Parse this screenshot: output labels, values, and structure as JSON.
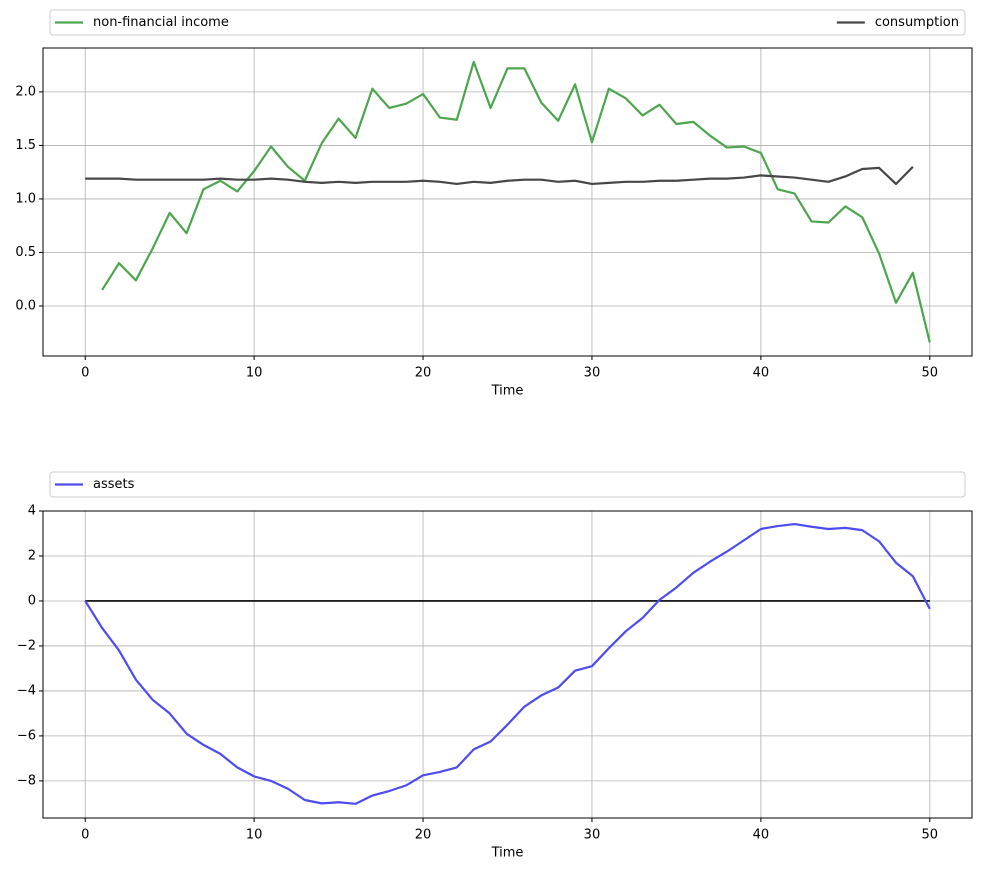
{
  "chart_data": [
    {
      "type": "line",
      "xlabel": "Time",
      "grid": true,
      "legend": "top-expand",
      "xlim": [
        -2.5,
        52.5
      ],
      "ylim": [
        -0.467,
        2.41
      ],
      "xticks": [
        0,
        10,
        20,
        30,
        40,
        50
      ],
      "yticks": [
        {
          "value": 0,
          "label": "0.0"
        },
        0.5,
        {
          "value": 1,
          "label": "1.0"
        },
        1.5,
        {
          "value": 2,
          "label": "2.0"
        }
      ],
      "series": [
        {
          "name": "non-financial income",
          "color": "#4ca64c",
          "x": [
            1,
            2,
            3,
            4,
            5,
            6,
            7,
            8,
            9,
            10,
            11,
            12,
            13,
            14,
            15,
            16,
            17,
            18,
            19,
            20,
            21,
            22,
            23,
            24,
            25,
            26,
            27,
            28,
            29,
            30,
            31,
            32,
            33,
            34,
            35,
            36,
            37,
            38,
            39,
            40,
            41,
            42,
            43,
            44,
            45,
            46,
            47,
            48,
            49,
            50
          ],
          "values": [
            0.15,
            0.4,
            0.24,
            0.54,
            0.87,
            0.68,
            1.09,
            1.17,
            1.07,
            1.26,
            1.49,
            1.3,
            1.17,
            1.52,
            1.75,
            1.57,
            2.03,
            1.85,
            1.89,
            1.98,
            1.76,
            1.74,
            2.28,
            1.85,
            2.22,
            2.22,
            1.9,
            1.73,
            2.07,
            1.53,
            2.03,
            1.94,
            1.78,
            1.88,
            1.7,
            1.72,
            1.59,
            1.48,
            1.49,
            1.43,
            1.09,
            1.05,
            0.79,
            0.78,
            0.93,
            0.83,
            0.49,
            0.03,
            0.31,
            -0.34
          ]
        },
        {
          "name": "consumption",
          "color": "#474747",
          "x": [
            0,
            1,
            2,
            3,
            4,
            5,
            6,
            7,
            8,
            9,
            10,
            11,
            12,
            13,
            14,
            15,
            16,
            17,
            18,
            19,
            20,
            21,
            22,
            23,
            24,
            25,
            26,
            27,
            28,
            29,
            30,
            31,
            32,
            33,
            34,
            35,
            36,
            37,
            38,
            39,
            40,
            41,
            42,
            43,
            44,
            45,
            46,
            47,
            48,
            49
          ],
          "values": [
            1.19,
            1.19,
            1.19,
            1.18,
            1.18,
            1.18,
            1.18,
            1.18,
            1.19,
            1.18,
            1.18,
            1.19,
            1.18,
            1.16,
            1.15,
            1.16,
            1.15,
            1.16,
            1.16,
            1.16,
            1.17,
            1.16,
            1.14,
            1.16,
            1.15,
            1.17,
            1.18,
            1.18,
            1.16,
            1.17,
            1.14,
            1.15,
            1.16,
            1.16,
            1.17,
            1.17,
            1.18,
            1.19,
            1.19,
            1.2,
            1.22,
            1.21,
            1.2,
            1.18,
            1.16,
            1.21,
            1.28,
            1.29,
            1.14,
            1.3
          ]
        }
      ]
    },
    {
      "type": "line",
      "xlabel": "Time",
      "grid": true,
      "legend": "top-expand",
      "xlim": [
        -2.5,
        52.5
      ],
      "ylim": [
        -9.65,
        4.0
      ],
      "xticks": [
        0,
        10,
        20,
        30,
        40,
        50
      ],
      "yticks": [
        {
          "value": -8,
          "label": "−8"
        },
        {
          "value": -6,
          "label": "−6"
        },
        {
          "value": -4,
          "label": "−4"
        },
        {
          "value": -2,
          "label": "−2"
        },
        0,
        2,
        4
      ],
      "reference_line": {
        "x": [
          0,
          50
        ],
        "values": [
          0,
          0
        ],
        "color": "#000000"
      },
      "series": [
        {
          "name": "assets",
          "color": "#4c4cf0",
          "x": [
            0,
            1,
            2,
            3,
            4,
            5,
            6,
            7,
            8,
            9,
            10,
            11,
            12,
            13,
            14,
            15,
            16,
            17,
            18,
            19,
            20,
            21,
            22,
            23,
            24,
            25,
            26,
            27,
            28,
            29,
            30,
            31,
            32,
            33,
            34,
            35,
            36,
            37,
            38,
            39,
            40,
            41,
            42,
            43,
            44,
            45,
            46,
            47,
            48,
            49,
            50
          ],
          "values": [
            0,
            -1.2,
            -2.2,
            -3.5,
            -4.4,
            -5.0,
            -5.9,
            -6.4,
            -6.8,
            -7.4,
            -7.8,
            -8.0,
            -8.35,
            -8.85,
            -9.0,
            -8.95,
            -9.02,
            -8.65,
            -8.45,
            -8.2,
            -7.75,
            -7.6,
            -7.4,
            -6.6,
            -6.25,
            -5.5,
            -4.7,
            -4.2,
            -3.85,
            -3.1,
            -2.9,
            -2.1,
            -1.35,
            -0.75,
            0.05,
            0.6,
            1.25,
            1.75,
            2.2,
            2.7,
            3.2,
            3.33,
            3.42,
            3.3,
            3.2,
            3.25,
            3.15,
            2.65,
            1.7,
            1.1,
            -0.35
          ]
        }
      ]
    }
  ]
}
